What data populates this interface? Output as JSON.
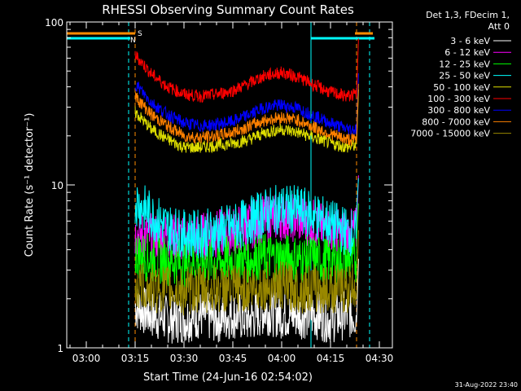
{
  "chart_data": {
    "type": "line",
    "title": "RHESSI Observing Summary Count Rates",
    "xlabel": "Start Time (24-Jun-16 02:54:02)",
    "ylabel": "Count Rate (s⁻¹ detector⁻¹)",
    "y_scale": "log",
    "ylim": [
      1,
      100
    ],
    "xlim": [
      "02:54",
      "04:34"
    ],
    "x_ticks": [
      "03:00",
      "03:15",
      "03:30",
      "03:45",
      "04:00",
      "04:15",
      "04:30"
    ],
    "y_ticks": [
      "1",
      "10",
      "100"
    ],
    "grid": false,
    "legend_header": [
      "Det 1,3, FDecim 1,",
      "Att 0"
    ],
    "legend_position": "right",
    "timestamp": "31-Aug-2022 23:40",
    "flags": [
      {
        "label": "S",
        "color": "#ff8c00"
      },
      {
        "label": "N",
        "color": "#00ffff"
      }
    ],
    "series": [
      {
        "name": "3 - 6 keV",
        "color": "#ffffff",
        "x": [
          "03:15",
          "03:20",
          "03:25",
          "03:30",
          "03:35",
          "03:40",
          "03:45",
          "03:50",
          "03:55",
          "04:00",
          "04:05",
          "04:10",
          "04:15",
          "04:20",
          "04:23"
        ],
        "y": [
          1.8,
          1.6,
          1.5,
          1.5,
          1.6,
          1.5,
          1.6,
          1.5,
          1.7,
          1.6,
          1.6,
          1.6,
          1.5,
          1.6,
          1.6
        ]
      },
      {
        "name": "6 - 12 keV",
        "color": "#ff00ff",
        "x": [
          "03:15",
          "03:20",
          "03:25",
          "03:30",
          "03:35",
          "03:40",
          "03:45",
          "03:50",
          "03:55",
          "04:00",
          "04:05",
          "04:10",
          "04:15",
          "04:20",
          "04:23"
        ],
        "y": [
          5.0,
          4.8,
          4.8,
          4.6,
          4.8,
          5.0,
          5.2,
          5.6,
          6.2,
          6.4,
          6.2,
          5.8,
          5.2,
          5.0,
          5.2
        ]
      },
      {
        "name": "12 - 25 keV",
        "color": "#00ff00",
        "x": [
          "03:15",
          "03:20",
          "03:25",
          "03:30",
          "03:35",
          "03:40",
          "03:45",
          "03:50",
          "03:55",
          "04:00",
          "04:05",
          "04:10",
          "04:15",
          "04:20",
          "04:23"
        ],
        "y": [
          3.8,
          3.5,
          3.4,
          3.3,
          3.4,
          3.4,
          3.5,
          3.5,
          3.6,
          3.6,
          3.5,
          3.5,
          3.4,
          3.4,
          3.5
        ]
      },
      {
        "name": "25 - 50 keV",
        "color": "#00ffff",
        "x": [
          "03:15",
          "03:20",
          "03:25",
          "03:30",
          "03:35",
          "03:40",
          "03:45",
          "03:50",
          "03:55",
          "04:00",
          "04:05",
          "04:10",
          "04:15",
          "04:20",
          "04:23"
        ],
        "y": [
          8.0,
          6.5,
          5.5,
          5.0,
          5.0,
          5.2,
          5.5,
          6.0,
          6.8,
          7.2,
          7.0,
          6.5,
          5.8,
          5.2,
          5.0
        ]
      },
      {
        "name": "50 - 100 keV",
        "color": "#dddd00",
        "x": [
          "03:15",
          "03:20",
          "03:25",
          "03:30",
          "03:35",
          "03:40",
          "03:45",
          "03:50",
          "03:55",
          "04:00",
          "04:05",
          "04:10",
          "04:15",
          "04:20",
          "04:23"
        ],
        "y": [
          28,
          22,
          19,
          17,
          17,
          17.5,
          18,
          19,
          21,
          22,
          21,
          19.5,
          18,
          17,
          17.5
        ]
      },
      {
        "name": "100 - 300 keV",
        "color": "#ff0000",
        "x": [
          "03:15",
          "03:20",
          "03:25",
          "03:30",
          "03:35",
          "03:40",
          "03:45",
          "03:50",
          "03:55",
          "04:00",
          "04:05",
          "04:10",
          "04:15",
          "04:20",
          "04:23"
        ],
        "y": [
          63,
          48,
          40,
          36,
          35,
          36,
          38,
          42,
          47,
          49,
          46,
          41,
          37,
          35,
          36
        ]
      },
      {
        "name": "300 - 800 keV",
        "color": "#0000ff",
        "x": [
          "03:15",
          "03:20",
          "03:25",
          "03:30",
          "03:35",
          "03:40",
          "03:45",
          "03:50",
          "03:55",
          "04:00",
          "04:05",
          "04:10",
          "04:15",
          "04:20",
          "04:23"
        ],
        "y": [
          42,
          32,
          27,
          24,
          23,
          23.5,
          24.5,
          27,
          30,
          31,
          29.5,
          26.5,
          24,
          22,
          22
        ]
      },
      {
        "name": "800 - 7000 keV",
        "color": "#ff8000",
        "x": [
          "03:15",
          "03:20",
          "03:25",
          "03:30",
          "03:35",
          "03:40",
          "03:45",
          "03:50",
          "03:55",
          "04:00",
          "04:05",
          "04:10",
          "04:15",
          "04:20",
          "04:23"
        ],
        "y": [
          35,
          27,
          23,
          20,
          19.5,
          20,
          21,
          23,
          25,
          26,
          25,
          22.5,
          20.5,
          19,
          19
        ]
      },
      {
        "name": "7000 - 15000 keV",
        "color": "#998800",
        "x": [
          "03:15",
          "03:20",
          "03:25",
          "03:30",
          "03:35",
          "03:40",
          "03:45",
          "03:50",
          "03:55",
          "04:00",
          "04:05",
          "04:10",
          "04:15",
          "04:20",
          "04:23"
        ],
        "y": [
          2.4,
          2.3,
          2.3,
          2.2,
          2.3,
          2.3,
          2.3,
          2.3,
          2.4,
          2.4,
          2.3,
          2.3,
          2.3,
          2.3,
          2.4
        ]
      }
    ]
  }
}
